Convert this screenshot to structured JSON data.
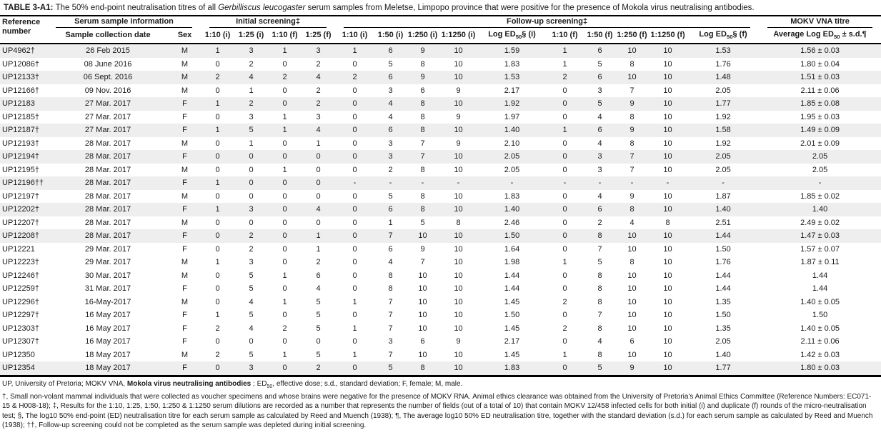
{
  "title_parts": [
    {
      "t": "TABLE 3-A1: ",
      "b": true
    },
    {
      "t": "The 50% end-point neutralisation titres of all "
    },
    {
      "t": "Gerbilliscus leucogaster",
      "i": true
    },
    {
      "t": " serum samples from Meletse, Limpopo province that were positive for the presence of Mokola virus neutralising antibodies."
    }
  ],
  "table": {
    "groups": {
      "ref": "Reference number",
      "serum": "Serum sample information",
      "initial": "Initial screening‡",
      "followup": "Follow-up screening‡",
      "mokv": "MOKV VNA titre"
    },
    "subheaders": {
      "date": "Sample collection date",
      "sex": "Sex",
      "initial": [
        "1:10 (i)",
        "1:25 (i)",
        "1:10 (f)",
        "1:25 (f)"
      ],
      "followup_i": [
        "1:10 (i)",
        "1:50 (i)",
        "1:250 (i)",
        "1:1250 (i)"
      ],
      "log_i_parts": [
        {
          "t": "Log ED"
        },
        {
          "t": "50",
          "sub": true
        },
        {
          "t": "§ (i)"
        }
      ],
      "followup_f": [
        "1:10 (f)",
        "1:50 (f)",
        "1:250 (f)",
        "1:1250 (f)"
      ],
      "log_f_parts": [
        {
          "t": "Log ED"
        },
        {
          "t": "50",
          "sub": true
        },
        {
          "t": "§ (f)"
        }
      ],
      "avg_parts": [
        {
          "t": "Average Log ED"
        },
        {
          "t": "50",
          "sub": true
        },
        {
          "t": " ± s.d.¶"
        }
      ]
    },
    "rows": [
      {
        "ref": "UP4962†",
        "date": "26 Feb 2015",
        "sex": "M",
        "initial": [
          "1",
          "3",
          "1",
          "3"
        ],
        "followup": [
          "1",
          "6",
          "9",
          "10",
          "1.59",
          "1",
          "6",
          "10",
          "10",
          "1.53"
        ],
        "avg": "1.56 ± 0.03",
        "shaded": true
      },
      {
        "ref": "UP12086†",
        "date": "08 June 2016",
        "sex": "M",
        "initial": [
          "0",
          "2",
          "0",
          "2"
        ],
        "followup": [
          "0",
          "5",
          "8",
          "10",
          "1.83",
          "1",
          "5",
          "8",
          "10",
          "1.76"
        ],
        "avg": "1.80 ± 0.04",
        "shaded": false
      },
      {
        "ref": "UP12133†",
        "date": "06 Sept. 2016",
        "sex": "M",
        "initial": [
          "2",
          "4",
          "2",
          "4"
        ],
        "followup": [
          "2",
          "6",
          "9",
          "10",
          "1.53",
          "2",
          "6",
          "10",
          "10",
          "1.48"
        ],
        "avg": "1.51 ± 0.03",
        "shaded": true
      },
      {
        "ref": "UP12166†",
        "date": "09 Nov. 2016",
        "sex": "M",
        "initial": [
          "0",
          "1",
          "0",
          "2"
        ],
        "followup": [
          "0",
          "3",
          "6",
          "9",
          "2.17",
          "0",
          "3",
          "7",
          "10",
          "2.05"
        ],
        "avg": "2.11 ± 0.06",
        "shaded": false
      },
      {
        "ref": "UP12183",
        "date": "27 Mar. 2017",
        "sex": "F",
        "initial": [
          "1",
          "2",
          "0",
          "2"
        ],
        "followup": [
          "0",
          "4",
          "8",
          "10",
          "1.92",
          "0",
          "5",
          "9",
          "10",
          "1.77"
        ],
        "avg": "1.85 ± 0.08",
        "shaded": true
      },
      {
        "ref": "UP12185†",
        "date": "27 Mar. 2017",
        "sex": "F",
        "initial": [
          "0",
          "3",
          "1",
          "3"
        ],
        "followup": [
          "0",
          "4",
          "8",
          "9",
          "1.97",
          "0",
          "4",
          "8",
          "10",
          "1.92"
        ],
        "avg": "1.95 ± 0.03",
        "shaded": false
      },
      {
        "ref": "UP12187†",
        "date": "27 Mar. 2017",
        "sex": "F",
        "initial": [
          "1",
          "5",
          "1",
          "4"
        ],
        "followup": [
          "0",
          "6",
          "8",
          "10",
          "1.40",
          "1",
          "6",
          "9",
          "10",
          "1.58"
        ],
        "avg": "1.49 ± 0.09",
        "shaded": true
      },
      {
        "ref": "UP12193†",
        "date": "28 Mar. 2017",
        "sex": "M",
        "initial": [
          "0",
          "1",
          "0",
          "1"
        ],
        "followup": [
          "0",
          "3",
          "7",
          "9",
          "2.10",
          "0",
          "4",
          "8",
          "10",
          "1.92"
        ],
        "avg": "2.01 ± 0.09",
        "shaded": false
      },
      {
        "ref": "UP12194†",
        "date": "28 Mar. 2017",
        "sex": "F",
        "initial": [
          "0",
          "0",
          "0",
          "0"
        ],
        "followup": [
          "0",
          "3",
          "7",
          "10",
          "2.05",
          "0",
          "3",
          "7",
          "10",
          "2.05"
        ],
        "avg": "2.05",
        "shaded": true
      },
      {
        "ref": "UP12195†",
        "date": "28 Mar. 2017",
        "sex": "M",
        "initial": [
          "0",
          "0",
          "1",
          "0"
        ],
        "followup": [
          "0",
          "2",
          "8",
          "10",
          "2.05",
          "0",
          "3",
          "7",
          "10",
          "2.05"
        ],
        "avg": "2.05",
        "shaded": false
      },
      {
        "ref": "UP12196††",
        "date": "28 Mar. 2017",
        "sex": "F",
        "initial": [
          "1",
          "0",
          "0",
          "0"
        ],
        "followup": [
          "-",
          "-",
          "-",
          "-",
          "-",
          "-",
          "-",
          "-",
          "-",
          "-"
        ],
        "avg": "-",
        "shaded": true
      },
      {
        "ref": "UP12197†",
        "date": "28 Mar. 2017",
        "sex": "M",
        "initial": [
          "0",
          "0",
          "0",
          "0"
        ],
        "followup": [
          "0",
          "5",
          "8",
          "10",
          "1.83",
          "0",
          "4",
          "9",
          "10",
          "1.87"
        ],
        "avg": "1.85 ± 0.02",
        "shaded": false
      },
      {
        "ref": "UP12202†",
        "date": "28 Mar. 2017",
        "sex": "F",
        "initial": [
          "1",
          "3",
          "0",
          "4"
        ],
        "followup": [
          "0",
          "6",
          "8",
          "10",
          "1.40",
          "0",
          "6",
          "8",
          "10",
          "1.40"
        ],
        "avg": "1.40",
        "shaded": true
      },
      {
        "ref": "UP12207†",
        "date": "28 Mar. 2017",
        "sex": "M",
        "initial": [
          "0",
          "0",
          "0",
          "0"
        ],
        "followup": [
          "0",
          "1",
          "5",
          "8",
          "2.46",
          "0",
          "2",
          "4",
          "8",
          "2.51"
        ],
        "avg": "2.49 ± 0.02",
        "shaded": false
      },
      {
        "ref": "UP12208†",
        "date": "28 Mar. 2017",
        "sex": "F",
        "initial": [
          "0",
          "2",
          "0",
          "1"
        ],
        "followup": [
          "0",
          "7",
          "10",
          "10",
          "1.50",
          "0",
          "8",
          "10",
          "10",
          "1.44"
        ],
        "avg": "1.47 ± 0.03",
        "shaded": true
      },
      {
        "ref": "UP12221",
        "date": "29 Mar. 2017",
        "sex": "F",
        "initial": [
          "0",
          "2",
          "0",
          "1"
        ],
        "followup": [
          "0",
          "6",
          "9",
          "10",
          "1.64",
          "0",
          "7",
          "10",
          "10",
          "1.50"
        ],
        "avg": "1.57 ± 0.07",
        "shaded": false
      },
      {
        "ref": "UP12223†",
        "date": "29 Mar. 2017",
        "sex": "M",
        "initial": [
          "1",
          "3",
          "0",
          "2"
        ],
        "followup": [
          "0",
          "4",
          "7",
          "10",
          "1.98",
          "1",
          "5",
          "8",
          "10",
          "1.76"
        ],
        "avg": "1.87 ± 0.11",
        "shaded": false
      },
      {
        "ref": "UP12246†",
        "date": "30 Mar. 2017",
        "sex": "M",
        "initial": [
          "0",
          "5",
          "1",
          "6"
        ],
        "followup": [
          "0",
          "8",
          "10",
          "10",
          "1.44",
          "0",
          "8",
          "10",
          "10",
          "1.44"
        ],
        "avg": "1.44",
        "shaded": false
      },
      {
        "ref": "UP12259†",
        "date": "31 Mar. 2017",
        "sex": "F",
        "initial": [
          "0",
          "5",
          "0",
          "4"
        ],
        "followup": [
          "0",
          "8",
          "10",
          "10",
          "1.44",
          "0",
          "8",
          "10",
          "10",
          "1.44"
        ],
        "avg": "1.44",
        "shaded": false
      },
      {
        "ref": "UP12296†",
        "date": "16-May-2017",
        "sex": "M",
        "initial": [
          "0",
          "4",
          "1",
          "5"
        ],
        "followup": [
          "1",
          "7",
          "10",
          "10",
          "1.45",
          "2",
          "8",
          "10",
          "10",
          "1.35"
        ],
        "avg": "1.40 ± 0.05",
        "shaded": false
      },
      {
        "ref": "UP12297†",
        "date": "16 May 2017",
        "sex": "F",
        "initial": [
          "1",
          "5",
          "0",
          "5"
        ],
        "followup": [
          "0",
          "7",
          "10",
          "10",
          "1.50",
          "0",
          "7",
          "10",
          "10",
          "1.50"
        ],
        "avg": "1.50",
        "shaded": false
      },
      {
        "ref": "UP12303†",
        "date": "16 May 2017",
        "sex": "F",
        "initial": [
          "2",
          "4",
          "2",
          "5"
        ],
        "followup": [
          "1",
          "7",
          "10",
          "10",
          "1.45",
          "2",
          "8",
          "10",
          "10",
          "1.35"
        ],
        "avg": "1.40 ± 0.05",
        "shaded": false
      },
      {
        "ref": "UP12307†",
        "date": "16 May 2017",
        "sex": "F",
        "initial": [
          "0",
          "0",
          "0",
          "0"
        ],
        "followup": [
          "0",
          "3",
          "6",
          "9",
          "2.17",
          "0",
          "4",
          "6",
          "10",
          "2.05"
        ],
        "avg": "2.11 ± 0.06",
        "shaded": false
      },
      {
        "ref": "UP12350",
        "date": "18 May 2017",
        "sex": "M",
        "initial": [
          "2",
          "5",
          "1",
          "5"
        ],
        "followup": [
          "1",
          "7",
          "10",
          "10",
          "1.45",
          "1",
          "8",
          "10",
          "10",
          "1.40"
        ],
        "avg": "1.42 ± 0.03",
        "shaded": false
      },
      {
        "ref": "UP12354",
        "date": "18 May 2017",
        "sex": "F",
        "initial": [
          "0",
          "3",
          "0",
          "2"
        ],
        "followup": [
          "0",
          "5",
          "8",
          "10",
          "1.83",
          "0",
          "5",
          "9",
          "10",
          "1.77"
        ],
        "avg": "1.80 ± 0.03",
        "shaded": true
      }
    ]
  },
  "footnotes": {
    "line1_parts": [
      {
        "t": "UP, University of Pretoria; MOKV VNA, "
      },
      {
        "t": "Mokola virus neutralising antibodies",
        "b": true
      },
      {
        "t": " ; ED"
      },
      {
        "t": "50",
        "sub": true
      },
      {
        "t": ", effective dose; s.d., standard deviation; F, female; M, male."
      }
    ],
    "para": "†, Small non-volant mammal individuals that were collected as voucher specimens and whose brains were negative for the presence of MOKV RNA. Animal ethics clearance was obtained from the University of Pretoria's Animal Ethics Committee (Reference Numbers: EC071-15 & H008-18); ‡, Results for the 1:10, 1:25, 1:50, 1:250 & 1:1250 serum dilutions are recorded as a number that represents the number of fields (out of a total of 10) that contain MOKV 12/458 infected cells for both initial (i) and duplicate (f) rounds of the micro-neutralisation test; §, The log10 50% end-point (ED) neutralisation titre for each serum sample as calculated by Reed and Muench (1938); ¶, The average log10 50% ED neutralisation titre, together with the standard deviation (s.d.) for each serum sample as calculated by Reed and Muench (1938); ††, Follow-up screening could not be completed as the serum sample was depleted during initial screening."
  },
  "colors": {
    "row_shade": "#eeeeee",
    "rule": "#000000"
  }
}
